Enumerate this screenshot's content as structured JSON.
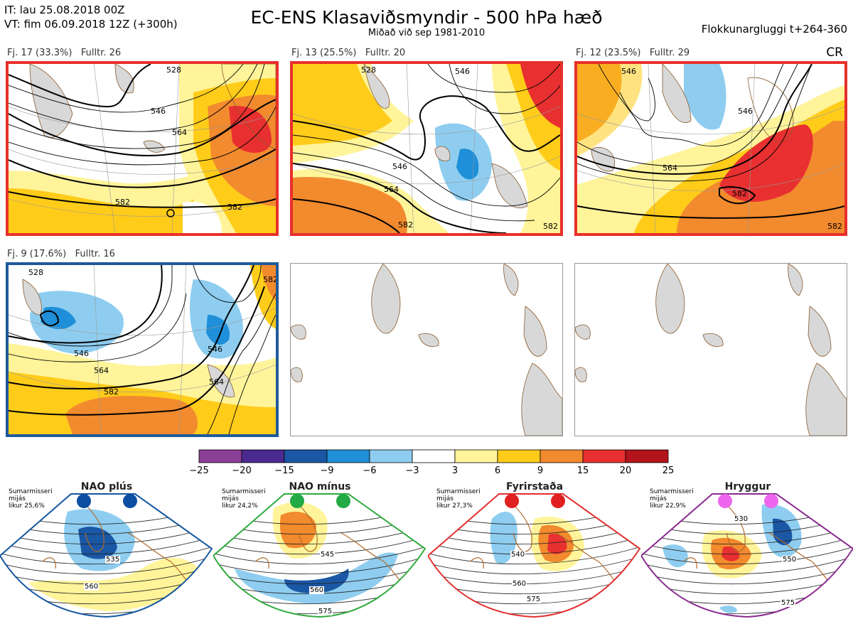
{
  "header": {
    "it": "IT: lau 25.08.2018 00Z",
    "vt": "VT: fim 06.09.2018 12Z  (+300h)",
    "title": "EC-ENS Klasaviðsmyndir - 500 hPa hæð",
    "subtitle": "Miðað við sep 1981-2010",
    "window": "Flokkunargluggi t+264-360",
    "cr": "CR"
  },
  "colors": {
    "red_frame": "#e8302a",
    "blue_frame": "#1f5a9a",
    "land": "#d8d8d8",
    "coast": "#8a5a2b"
  },
  "panels": [
    {
      "label": "Fj. 17 (33.3%)   Fulltr. 26",
      "frame": "red",
      "contours": [
        "528",
        "546",
        "564",
        "582",
        "582"
      ]
    },
    {
      "label": "Fj. 13 (25.5%)   Fulltr. 20",
      "frame": "red",
      "contours": [
        "528",
        "546",
        "546",
        "564",
        "582",
        "582"
      ]
    },
    {
      "label": "Fj. 12 (23.5%)   Fulltr. 29",
      "frame": "red",
      "contours": [
        "546",
        "546",
        "564",
        "582",
        "582"
      ]
    },
    {
      "label": "Fj. 9 (17.6%)   Fulltr. 16",
      "frame": "blue",
      "contours": [
        "528",
        "546",
        "546",
        "564",
        "582",
        "564",
        "582"
      ]
    },
    {
      "label": "",
      "frame": "none",
      "contours": []
    },
    {
      "label": "",
      "frame": "none",
      "contours": []
    }
  ],
  "colorbar": {
    "ticks": [
      "−25",
      "−20",
      "−15",
      "−9",
      "−6",
      "−3",
      "3",
      "6",
      "9",
      "15",
      "20",
      "25"
    ],
    "colors": [
      "#8b3f97",
      "#4a2a8f",
      "#1a57a5",
      "#1e8fd8",
      "#8ecdf0",
      "#ffffff",
      "#fff49a",
      "#ffcc1a",
      "#f28a2e",
      "#e83030",
      "#b3131a"
    ]
  },
  "regimes": [
    {
      "name": "NAO plús",
      "info": [
        "Sumarmisseri",
        "mijás",
        "likur 25,6%"
      ],
      "dot_color": "#0b4ea2",
      "frame_color": "#1557a0",
      "labels": [
        "535",
        "560"
      ]
    },
    {
      "name": "NAO mínus",
      "info": [
        "Sumarmisseri",
        "mijás",
        "likur 24,2%"
      ],
      "dot_color": "#22aa44",
      "frame_color": "#2eaa3c",
      "labels": [
        "545",
        "560",
        "575"
      ]
    },
    {
      "name": "Fyrirstaða",
      "info": [
        "Sumarmisseri",
        "mijás",
        "likur 27,3%"
      ],
      "dot_color": "#e02020",
      "frame_color": "#e23030",
      "labels": [
        "540",
        "560",
        "575"
      ]
    },
    {
      "name": "Hryggur",
      "info": [
        "Sumarmisseri",
        "mijás",
        "likur 22,9%"
      ],
      "dot_color": "#ee66ee",
      "frame_color": "#8a2a8f",
      "labels": [
        "530",
        "550",
        "575"
      ]
    }
  ]
}
